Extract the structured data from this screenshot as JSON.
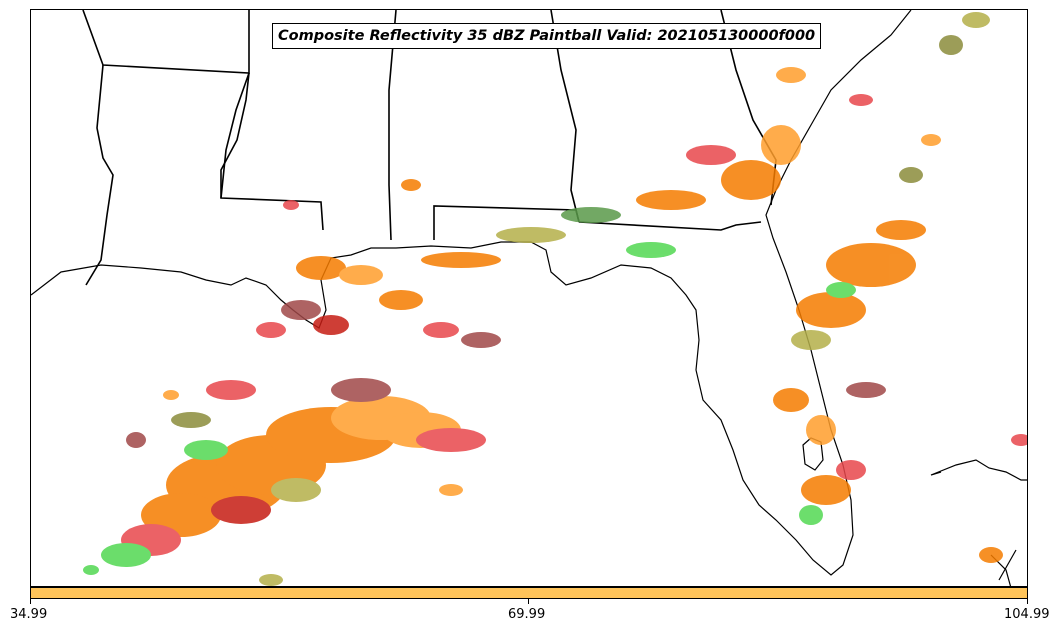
{
  "title": "Composite Reflectivity 35 dBZ Paintball Valid: 202105130000f000",
  "colorbar": {
    "color": "#ffc45a",
    "ticks": [
      "34.99",
      "69.99",
      "104.99"
    ]
  },
  "map": {
    "region": "U.S. Gulf Coast and Florida",
    "boundaries": [
      "coastline",
      "state borders"
    ],
    "paintball_colors": [
      "#f57c00",
      "#ff9e2c",
      "#e8474c",
      "#c61d14",
      "#52d852",
      "#5a9a4a",
      "#b5b04a",
      "#a04848",
      "#8b8c3c"
    ]
  }
}
